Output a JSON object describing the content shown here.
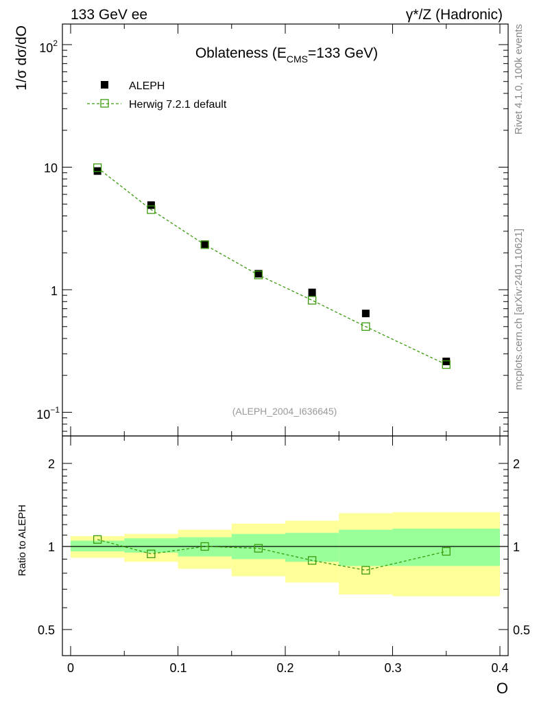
{
  "header": {
    "left_label": "133 GeV ee",
    "right_label": "γ*/Z (Hadronic)"
  },
  "side_labels": {
    "rivet": "Rivet 4.1.0,  100k events",
    "mcplots": "mcplots.cern.ch [arXiv:2401.10621]"
  },
  "main_plot": {
    "ylabel": "1/σ  dσ/dO",
    "title_prefix": "Oblateness (E",
    "title_sub": "CMS",
    "title_suffix": "=133 GeV)",
    "analysis_id": "(ALEPH_2004_I636645)",
    "ytick_labels": {
      "y100": "10",
      "y100_exp": "2",
      "y10": "10",
      "y1": "1",
      "y01": "10",
      "y01_exp": "−1"
    }
  },
  "ratio_plot": {
    "ylabel": "Ratio to ALEPH",
    "ytick_labels": [
      "2",
      "1",
      "0.5"
    ]
  },
  "xaxis": {
    "label": "O",
    "tick_labels": [
      "0",
      "0.1",
      "0.2",
      "0.3",
      "0.4"
    ]
  },
  "legend": {
    "data_label": "ALEPH",
    "mc_label": "Herwig 7.2.1 default"
  },
  "colors": {
    "data": "#000000",
    "mc": "#3a9a0c",
    "band_inner": "#99ff99",
    "band_outer": "#ffff99"
  },
  "chart_data": {
    "type": "line",
    "title": "Oblateness (E_CMS=133 GeV)",
    "xlabel": "O",
    "ylabel": "1/σ dσ/dO",
    "xlim": [
      0,
      0.4
    ],
    "ylim": [
      0.07,
      150
    ],
    "yscale": "log",
    "bins": [
      [
        0,
        0.05
      ],
      [
        0.05,
        0.1
      ],
      [
        0.1,
        0.15
      ],
      [
        0.15,
        0.2
      ],
      [
        0.2,
        0.25
      ],
      [
        0.25,
        0.3
      ],
      [
        0.3,
        0.4
      ]
    ],
    "series": [
      {
        "name": "ALEPH",
        "marker": "filled-square",
        "x": [
          0.025,
          0.075,
          0.125,
          0.175,
          0.225,
          0.275,
          0.35
        ],
        "values": [
          9.3,
          4.9,
          2.35,
          1.35,
          0.95,
          0.64,
          0.26
        ]
      },
      {
        "name": "Herwig 7.2.1 default",
        "marker": "open-square",
        "x": [
          0.025,
          0.075,
          0.125,
          0.175,
          0.225,
          0.275,
          0.35
        ],
        "values": [
          9.9,
          4.5,
          2.33,
          1.32,
          0.82,
          0.5,
          0.245
        ]
      }
    ],
    "ratio": {
      "ylabel": "Ratio to ALEPH",
      "ylim": [
        0.4,
        2.35
      ],
      "yscale": "log",
      "mc_ratio": [
        1.06,
        0.94,
        1.0,
        0.985,
        0.89,
        0.82,
        0.96
      ],
      "band_inner": [
        [
          0.96,
          1.05
        ],
        [
          0.95,
          1.07
        ],
        [
          0.92,
          1.08
        ],
        [
          0.9,
          1.11
        ],
        [
          0.88,
          1.12
        ],
        [
          0.85,
          1.15
        ],
        [
          0.85,
          1.16
        ]
      ],
      "band_outer": [
        [
          0.91,
          1.09
        ],
        [
          0.88,
          1.11
        ],
        [
          0.83,
          1.15
        ],
        [
          0.78,
          1.21
        ],
        [
          0.74,
          1.24
        ],
        [
          0.67,
          1.32
        ],
        [
          0.66,
          1.33
        ]
      ]
    }
  }
}
